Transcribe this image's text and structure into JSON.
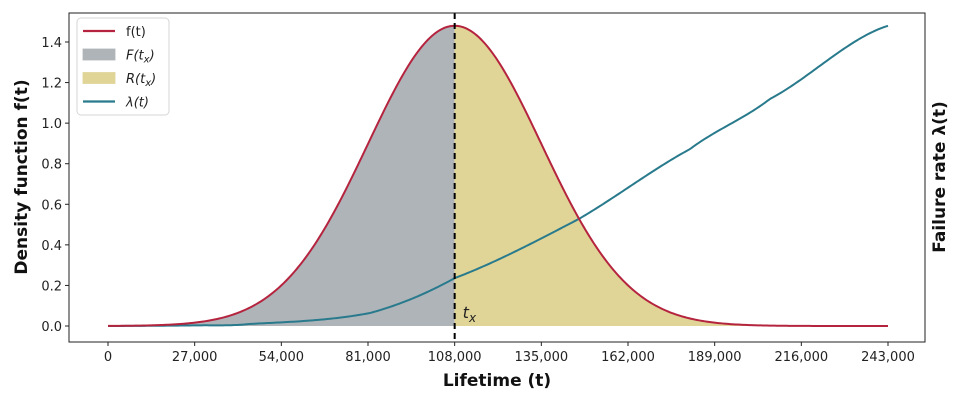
{
  "chart_data": {
    "type": "line",
    "xlabel": "Lifetime (t)",
    "ylabel": "Density function f(t)",
    "ylabel_right": "Failure rate λ(t)",
    "xlim": [
      -15000,
      252000
    ],
    "ylim": [
      -0.05,
      1.54
    ],
    "x_ticks": [
      0,
      27000,
      54000,
      81000,
      108000,
      135000,
      162000,
      189000,
      216000,
      243000
    ],
    "x_tick_labels": [
      "0",
      "27,000",
      "54,000",
      "81,000",
      "108,000",
      "135,000",
      "162,000",
      "189,000",
      "216,000",
      "243,000"
    ],
    "y_ticks": [
      0.0,
      0.2,
      0.4,
      0.6,
      0.8,
      1.0,
      1.2,
      1.4
    ],
    "y_tick_labels": [
      "0.0",
      "0.2",
      "0.4",
      "0.6",
      "0.8",
      "1.0",
      "1.2",
      "1.4"
    ],
    "t_x": 108000,
    "t_x_label": "t_x",
    "density": {
      "name": "f(t)",
      "distribution": "normal",
      "mean": 108000,
      "std": 27000,
      "peak": 1.48,
      "x_range": [
        0,
        243000
      ]
    },
    "failure_rate": {
      "name": "λ(t)",
      "x": [
        0,
        27000,
        44000,
        81600,
        108000,
        146600,
        181300,
        206200,
        243000
      ],
      "y": [
        0.0,
        0.003,
        0.01,
        0.064,
        0.236,
        0.527,
        0.872,
        1.119,
        1.48
      ]
    },
    "legend": {
      "placement": "upper-left",
      "entries": [
        {
          "label": "f(t)",
          "base": "f(t)",
          "sub": "",
          "kind": "line",
          "color": "#b5243f"
        },
        {
          "label": "F(t_x)",
          "base": "F(t",
          "sub": "x",
          "close": ")",
          "kind": "patch",
          "color": "#afb4b9"
        },
        {
          "label": "R(t_x)",
          "base": "R(t",
          "sub": "x",
          "close": ")",
          "kind": "patch",
          "color": "#e0d597"
        },
        {
          "label": "λ(t)",
          "base": "λ(t)",
          "sub": "",
          "kind": "line",
          "color": "#287a8c"
        }
      ]
    },
    "colors": {
      "density_line": "#b5243f",
      "cdf_fill": "#afb4b9",
      "reliability_fill": "#e0d597",
      "failure_rate_line": "#287a8c",
      "tx_line": "#000000"
    },
    "grid": false
  }
}
